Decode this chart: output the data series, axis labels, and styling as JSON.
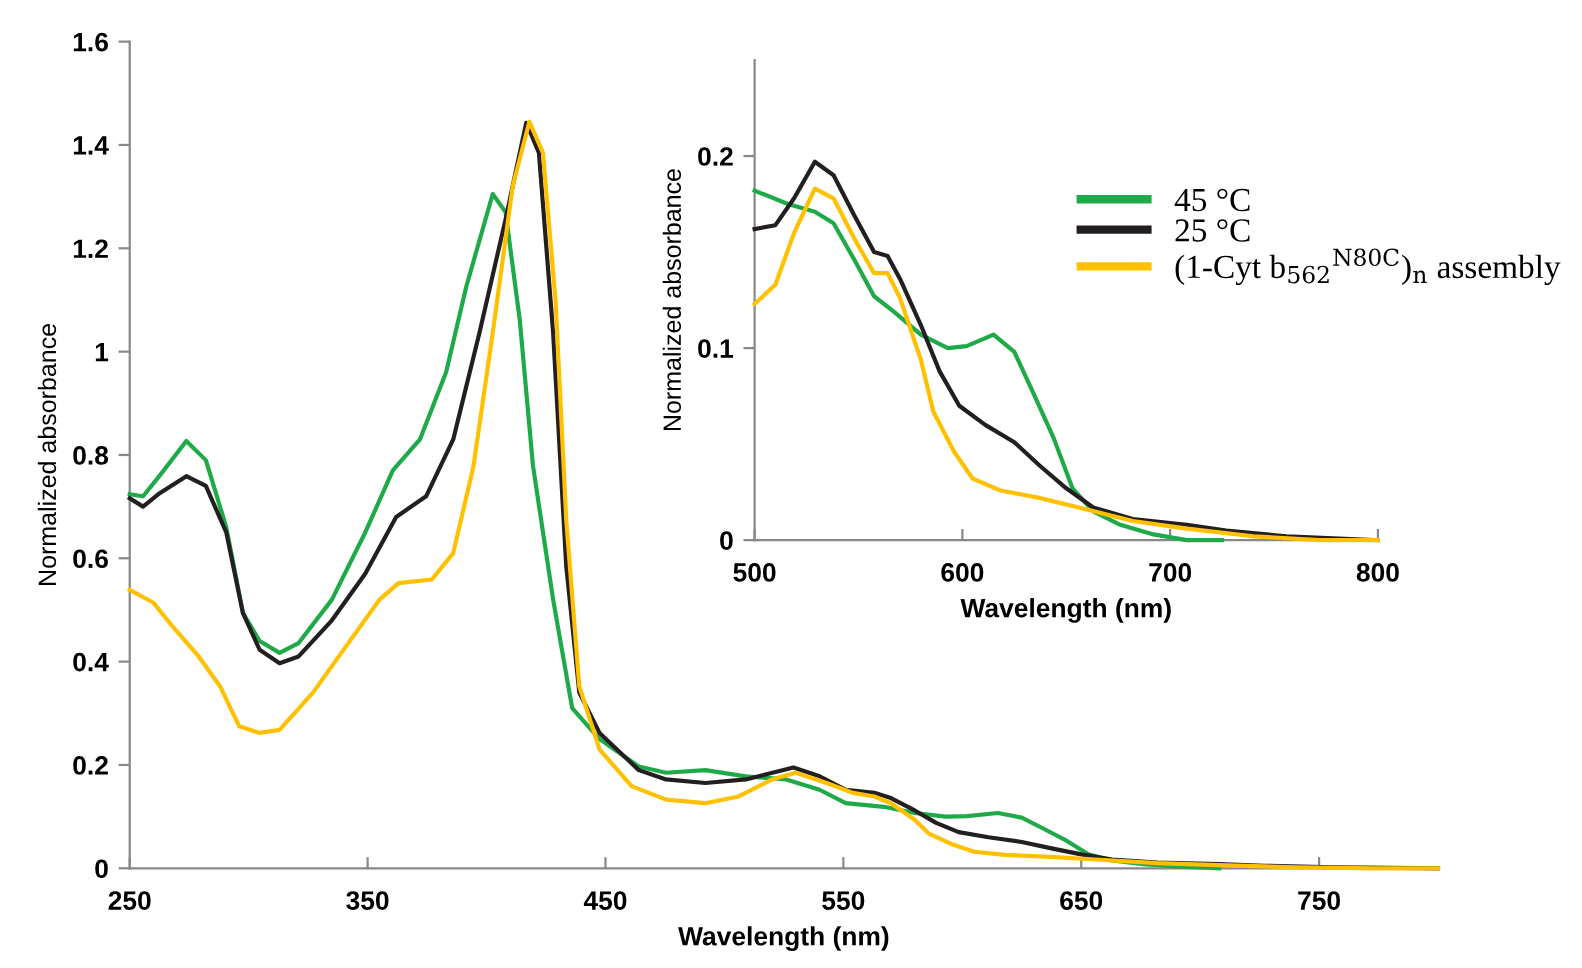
{
  "chart_data": [
    {
      "type": "line",
      "xlabel": "Wavelength (nm)",
      "ylabel": "Normalized absorbance",
      "xlim": [
        250,
        800
      ],
      "ylim": [
        0,
        1.6
      ],
      "xticks": [
        250,
        350,
        450,
        550,
        650,
        750
      ],
      "yticks": [
        0,
        0.2,
        0.4,
        0.6,
        0.8,
        1,
        1.2,
        1.4,
        1.6
      ],
      "grid": false,
      "legend": "top right",
      "marker": "none",
      "line_style": "solid",
      "series": [
        {
          "name": "45 °C",
          "color": "#1faa4a",
          "x": [
            250,
            255.6,
            262.6,
            273.8,
            282,
            290.6,
            297.6,
            304.6,
            313,
            321,
            335,
            349,
            360.6,
            372,
            383,
            391.5,
            402.6,
            408,
            414,
            419.5,
            428,
            436,
            447.5,
            464,
            475.5,
            492,
            509,
            526,
            540,
            551,
            567,
            580,
            593,
            602,
            615,
            625,
            634,
            644,
            653,
            663,
            676,
            692,
            708
          ],
          "values": [
            0.724,
            0.72,
            0.76,
            0.827,
            0.79,
            0.66,
            0.494,
            0.44,
            0.417,
            0.436,
            0.52,
            0.65,
            0.77,
            0.83,
            0.96,
            1.126,
            1.305,
            1.27,
            1.06,
            0.78,
            0.52,
            0.31,
            0.25,
            0.197,
            0.185,
            0.19,
            0.178,
            0.172,
            0.152,
            0.126,
            0.119,
            0.107,
            0.1,
            0.101,
            0.107,
            0.098,
            0.077,
            0.053,
            0.027,
            0.015,
            0.008,
            0.003,
            0
          ]
        },
        {
          "name": "25 °C",
          "color": "#231f20",
          "x": [
            250,
            255.6,
            262.6,
            273.8,
            282,
            290.6,
            297.6,
            304.6,
            313,
            321,
            335,
            349,
            362,
            374.6,
            386,
            397,
            408,
            416.7,
            422,
            428,
            433.5,
            439,
            447.5,
            464,
            475.5,
            492,
            509,
            529,
            540,
            551,
            563,
            570,
            580,
            589,
            598.5,
            611,
            625,
            637,
            650,
            663,
            682,
            708,
            727,
            756,
            800
          ],
          "values": [
            0.716,
            0.7,
            0.726,
            0.759,
            0.74,
            0.65,
            0.494,
            0.423,
            0.397,
            0.41,
            0.48,
            0.57,
            0.68,
            0.72,
            0.83,
            1.036,
            1.256,
            1.443,
            1.385,
            1.036,
            0.585,
            0.34,
            0.262,
            0.19,
            0.172,
            0.165,
            0.172,
            0.195,
            0.178,
            0.152,
            0.146,
            0.136,
            0.112,
            0.088,
            0.07,
            0.06,
            0.051,
            0.039,
            0.027,
            0.017,
            0.011,
            0.008,
            0.005,
            0.002,
            0
          ]
        },
        {
          "name": "(1-Cyt b$_{562}$$^{N80C}$)$_{n}$ assembly",
          "color": "#ffc000",
          "x": [
            250,
            260,
            268,
            279,
            288,
            296,
            304.6,
            313,
            327,
            341,
            355,
            363,
            377,
            386,
            394.5,
            402.6,
            411,
            418,
            423.7,
            429,
            433.5,
            439,
            447.5,
            461,
            475.5,
            492,
            506,
            520,
            530,
            543,
            554,
            563,
            570,
            580,
            586,
            596,
            605,
            618,
            637,
            656,
            682,
            708,
            740,
            772,
            800
          ],
          "values": [
            0.539,
            0.514,
            0.468,
            0.41,
            0.352,
            0.275,
            0.262,
            0.268,
            0.34,
            0.43,
            0.52,
            0.552,
            0.559,
            0.61,
            0.778,
            1.036,
            1.32,
            1.445,
            1.385,
            1.1,
            0.675,
            0.352,
            0.23,
            0.159,
            0.133,
            0.126,
            0.139,
            0.172,
            0.185,
            0.165,
            0.146,
            0.139,
            0.126,
            0.094,
            0.067,
            0.046,
            0.032,
            0.026,
            0.022,
            0.017,
            0.01,
            0.006,
            0.002,
            0,
            0
          ]
        }
      ]
    },
    {
      "type": "line",
      "xlabel": "Wavelength (nm)",
      "ylabel": "Normalized absorbance",
      "xlim": [
        500,
        800
      ],
      "ylim": [
        0,
        0.25
      ],
      "xticks": [
        500,
        600,
        700,
        800
      ],
      "yticks": [
        0,
        0.1,
        0.2
      ],
      "grid": false,
      "marker": "none",
      "line_style": "solid",
      "series": [
        {
          "color": "#1faa4a",
          "x": [
            500,
            516,
            529,
            538,
            548,
            557.5,
            567,
            580,
            593,
            602,
            615,
            625,
            634,
            644,
            653,
            663,
            676,
            692,
            708,
            717,
            725
          ],
          "values": [
            0.182,
            0.175,
            0.171,
            0.165,
            0.146,
            0.127,
            0.119,
            0.107,
            0.1,
            0.101,
            0.107,
            0.098,
            0.077,
            0.053,
            0.027,
            0.015,
            0.008,
            0.003,
            0,
            0,
            0
          ]
        },
        {
          "color": "#231f20",
          "x": [
            500,
            510,
            519,
            529,
            538,
            548,
            557.5,
            564,
            570,
            580,
            589,
            598.5,
            611,
            625,
            637,
            650,
            663,
            682,
            708,
            727,
            756,
            800
          ],
          "values": [
            0.162,
            0.164,
            0.178,
            0.197,
            0.19,
            0.169,
            0.15,
            0.148,
            0.136,
            0.112,
            0.088,
            0.07,
            0.06,
            0.051,
            0.039,
            0.027,
            0.017,
            0.011,
            0.008,
            0.005,
            0.002,
            0
          ]
        },
        {
          "color": "#ffc000",
          "x": [
            500,
            510,
            519,
            529,
            538,
            548,
            557.5,
            564,
            570,
            580,
            586,
            596,
            605,
            618,
            637,
            656,
            682,
            708,
            740,
            772,
            800
          ],
          "values": [
            0.123,
            0.133,
            0.16,
            0.183,
            0.178,
            0.157,
            0.139,
            0.139,
            0.126,
            0.094,
            0.067,
            0.046,
            0.032,
            0.026,
            0.022,
            0.017,
            0.01,
            0.006,
            0.002,
            0,
            0
          ]
        }
      ]
    }
  ]
}
